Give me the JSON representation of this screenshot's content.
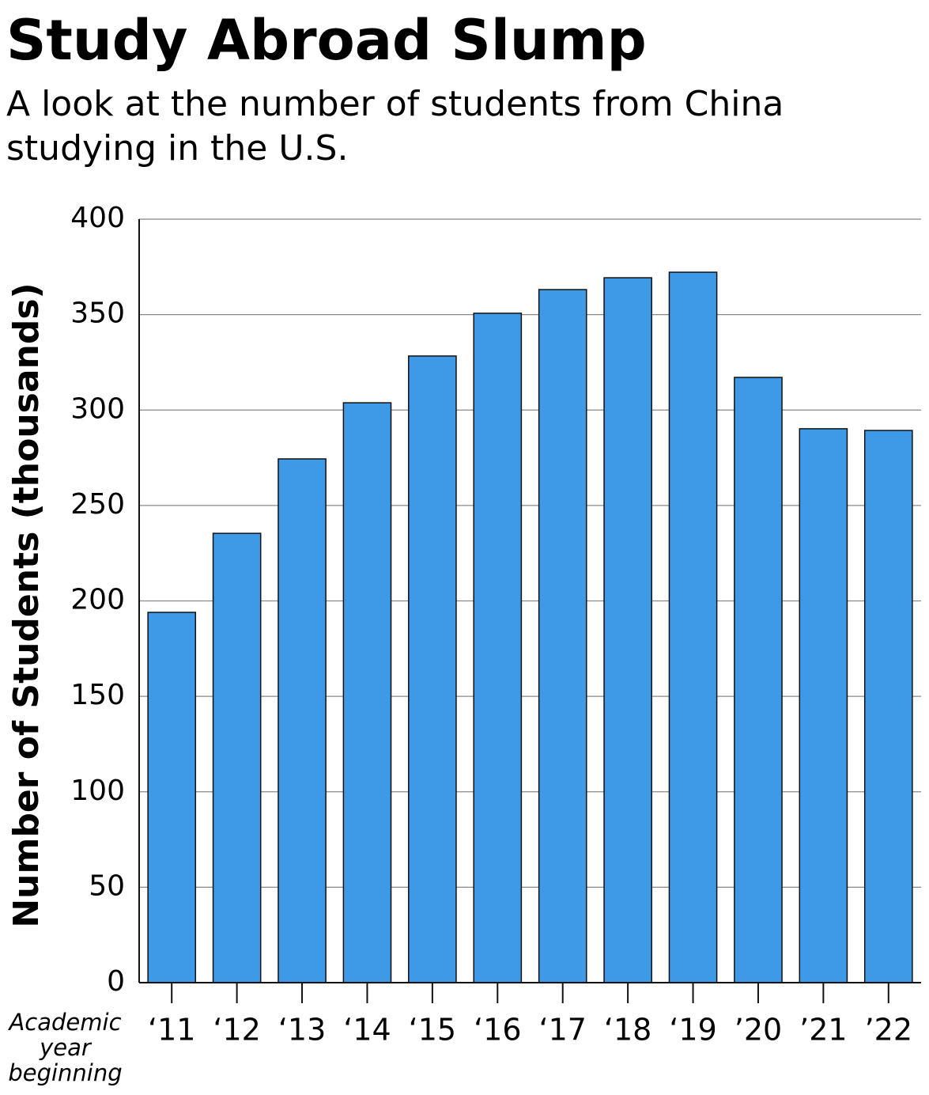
{
  "chart_data": {
    "type": "bar",
    "title": "Study Abroad Slump",
    "subtitle": "A look at the number of students from China studying in the U.S.",
    "y_label": "Number of Students (thousands)",
    "x_label": "Academic year beginning",
    "categories": [
      "‘11",
      "‘12",
      "‘13",
      "‘14",
      "‘15",
      "‘16",
      "‘17",
      "‘18",
      "‘19",
      "’20",
      "’21",
      "’22"
    ],
    "values": [
      194.0,
      235.4,
      274.4,
      303.8,
      328.3,
      350.7,
      363.1,
      369.3,
      372.2,
      317.1,
      290.2,
      289.3
    ],
    "color": "#3e99e6",
    "ylim": [
      0,
      400
    ],
    "yticks": [
      0,
      50,
      100,
      150,
      200,
      250,
      300,
      350,
      400
    ],
    "grid": true
  }
}
